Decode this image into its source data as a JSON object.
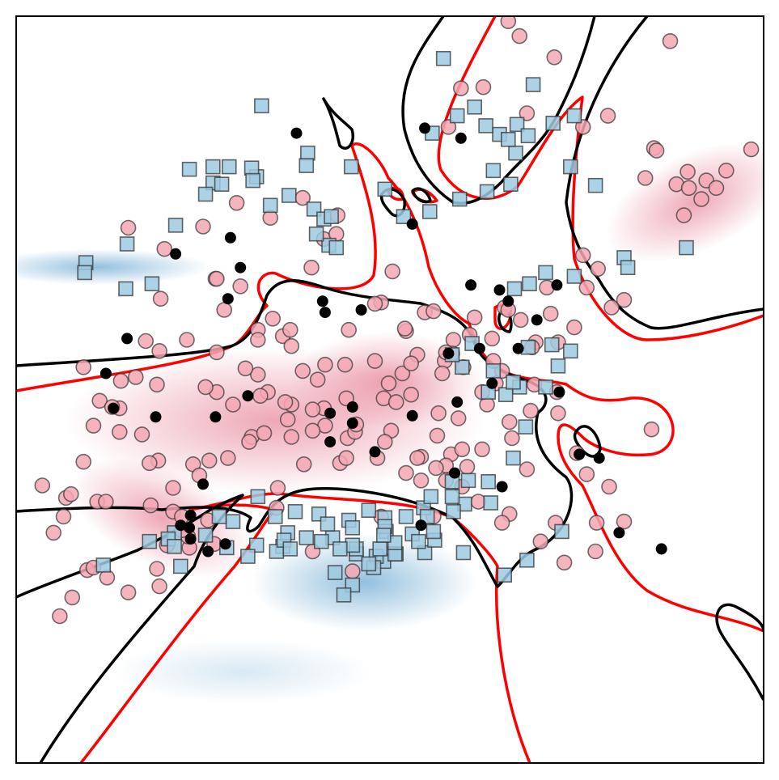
{
  "chart_data": {
    "type": "scatter",
    "title": "",
    "xlabel": "",
    "ylabel": "",
    "xlim": [
      -3,
      3
    ],
    "ylim": [
      -3,
      3
    ],
    "grid": false,
    "axis_ticks": false,
    "colors": {
      "class_red_fill": "#f4a7b4",
      "class_blue_fill": "#9ecae1",
      "marker_edge": "#333333",
      "support_vector": "#000000",
      "boundary_red": "#ff0000",
      "boundary_black": "#000000",
      "density_red": "#e0607a",
      "density_blue": "#3b8cc4"
    },
    "series": [
      {
        "marker": "circle",
        "x": [
          -1.84,
          -1.4,
          -1.33,
          -0.86,
          -0.79,
          -0.52,
          -0.79,
          -0.33,
          -0.07,
          0.02,
          0.28,
          0.35,
          0.68,
          0.51,
          0.1,
          0.22,
          0.82,
          1.17,
          1.35,
          0.9,
          0.55,
          0.01,
          -0.05,
          -0.36,
          -0.58,
          -1.06,
          -0.4,
          0.25,
          0.62,
          0.78,
          0.59,
          0.44,
          0.13,
          -0.12,
          -0.53,
          -0.7,
          -0.98,
          -1.16,
          -1.06,
          -1.39,
          -1.39,
          -1.63,
          -1.85,
          -1.96,
          -2.04,
          -2.17,
          -2.33,
          -2.46,
          -2.16,
          -1.87,
          -1.48,
          -1.04,
          -0.62,
          -0.34,
          -0.1,
          0.25,
          0.49,
          0.74,
          0.98,
          1.13,
          1.34,
          1.5,
          1.76,
          1.66,
          1.33,
          0.96,
          0.71,
          0.45,
          0.22,
          -0.04,
          -0.28,
          -0.52,
          -0.82,
          -1.11,
          -1.3,
          -1.58,
          -1.86,
          -1.99,
          -2.17,
          -2.23,
          -2.38,
          -2.46,
          -2.79,
          -2.6,
          -2.35,
          -1.92,
          -1.74,
          -1.46,
          -1.61,
          -1.79,
          -1.87,
          -2.27,
          -2.43,
          -2.38,
          -2.1,
          -2.55,
          -2.65,
          -2.7,
          -1.67,
          -2.56,
          -1.41,
          -1.53,
          -1.13,
          -0.79,
          -0.35,
          0.05,
          0.42,
          0.83,
          1.05,
          1.26,
          1.58,
          1.78,
          1.29,
          0.92,
          0.64,
          0.5,
          0.17,
          -0.01,
          0.17,
          0.39,
          0.45,
          1.55,
          1.88,
          1.48,
          1.67,
          2.36,
          2.5,
          2.05,
          2.3,
          2.39,
          2.54,
          2.62,
          2.7,
          2.9,
          2.4,
          2.12,
          2.14,
          1.55,
          1.1,
          1.32,
          1.04,
          0.95,
          0.75,
          0.57,
          0.47,
          -0.53,
          -0.63,
          -0.84,
          -1.39,
          -1.93,
          -0.43,
          -0.94,
          -1.06,
          -1.26,
          -0.69,
          -0.9,
          0.37,
          0.58,
          0.96,
          0.85,
          1.16,
          1.35,
          1.1,
          0.9,
          0.58,
          0.35,
          -0.07,
          -0.35,
          -0.62,
          -1.01,
          -1.45,
          -1.74,
          -2.28,
          -2.62,
          -0.62,
          -0.3,
          0.13,
          0.38,
          0.12,
          -0.12,
          -0.42,
          -0.7,
          -0.96,
          -1.23,
          -1.5,
          -1.81,
          1.21,
          1.4,
          1.65,
          1.88,
          2.1,
          1.14,
          0.74,
          0.45,
          -0.27,
          -0.8,
          -1.2,
          0.95,
          1.58,
          2.25,
          1.75,
          -1.62,
          -0.91,
          -1.85,
          -1.67,
          -2.1
        ],
        "y": [
          0.73,
          0.89,
          0.64,
          0.43,
          0.35,
          0.2,
          -0.12,
          0.48,
          0.7,
          0.95,
          0.62,
          0.63,
          0.58,
          0.4,
          0.13,
          0.28,
          0.41,
          0.38,
          0.38,
          0.15,
          -0.23,
          -0.33,
          -0.07,
          0.2,
          0.08,
          0.12,
          -0.59,
          -0.54,
          -0.62,
          -0.12,
          0.18,
          0.23,
          0.47,
          0.23,
          -0.15,
          0.15,
          -0.02,
          0.17,
          0.48,
          0.3,
          -0.02,
          0.4,
          0.31,
          0.39,
          0.1,
          -0.15,
          -0.09,
          0.18,
          0.07,
          0.04,
          0.02,
          -0.05,
          -0.16,
          -0.39,
          -0.55,
          -0.73,
          -0.52,
          -0.48,
          -0.39,
          -0.17,
          -0.02,
          -0.51,
          -0.78,
          -1.07,
          -1.07,
          -1.0,
          -0.9,
          -0.73,
          -0.55,
          -0.42,
          -0.34,
          -0.29,
          -0.24,
          -0.38,
          -0.55,
          -0.6,
          -0.57,
          -0.36,
          -0.34,
          -0.14,
          -0.29,
          -0.58,
          -0.77,
          -0.87,
          -0.9,
          -0.93,
          -0.98,
          -1.05,
          -1.27,
          -1.25,
          -1.44,
          -1.51,
          -1.45,
          -1.43,
          -1.63,
          -1.67,
          -1.82,
          -1.15,
          -1.02,
          -0.84,
          -1.24,
          -0.69,
          -0.42,
          -0.38,
          -0.07,
          -0.1,
          0.13,
          0.23,
          0.56,
          0.82,
          0.82,
          0.66,
          0.61,
          0.66,
          0.44,
          0.29,
          0.21,
          0.05,
          -0.04,
          -0.19,
          -0.61,
          1.08,
          0.72,
          0.5,
          0.97,
          1.4,
          1.53,
          1.7,
          1.65,
          1.75,
          1.68,
          1.62,
          1.76,
          1.93,
          1.62,
          1.94,
          1.92,
          2.11,
          2.22,
          2.67,
          2.84,
          2.96,
          2.43,
          2.42,
          2.11,
          1.21,
          0.98,
          -0.1,
          0.89,
          -0.59,
          1.25,
          0.57,
          0.4,
          -0.12,
          -0.6,
          -0.79,
          -0.63,
          -0.48,
          -0.26,
          0.05,
          0.04,
          -0.19,
          -0.64,
          -1.07,
          -0.78,
          -1.02,
          -1.02,
          -0.55,
          -0.33,
          -0.35,
          -0.57,
          -0.79,
          -0.9,
          -1.02,
          -1.3,
          -1.46,
          -0.67,
          -0.37,
          0.49,
          0.69,
          1.4,
          1.54,
          1.38,
          1.5,
          1.31,
          1.13,
          -1.22,
          -1.39,
          -1.3,
          -1.06,
          -0.32,
          0.34,
          -0.02,
          0.3,
          -0.28,
          0.48,
          0.83,
          0.64,
          -0.68,
          2.8,
          2.2,
          -1.18,
          -0.95,
          -1.58,
          -1.13,
          1.3
        ]
      },
      {
        "marker": "square",
        "x": [
          -1.73,
          -1.78,
          -1.73,
          -1.68,
          -2.3,
          -1.93,
          -1.48,
          -1.06,
          -1.26,
          -1.37,
          -1.31,
          -1.07,
          -1.14,
          -0.86,
          -0.27,
          -0.05,
          0.05,
          0.28,
          0.36,
          0.59,
          0.35,
          0.13,
          -0.03,
          -0.04,
          0.6,
          0.81,
          0.79,
          0.5,
          0.5,
          0.27,
          0.33,
          0.63,
          0.99,
          1.09,
          1.04,
          0.93,
          0.79,
          0.58,
          0.5,
          0.66,
          1.11,
          1.3,
          1.45,
          1.35,
          1.25,
          0.99,
          0.83,
          -0.17,
          0.51,
          -0.33,
          -0.04,
          0.3,
          0.04,
          -0.11,
          -0.27,
          -0.46,
          -0.57,
          -0.76,
          -0.91,
          -0.92,
          -0.82,
          -0.55,
          -0.3,
          -0.08,
          -0.13,
          0.04,
          0.18,
          0.23,
          -0.05,
          -0.3,
          -0.5,
          -0.85,
          -0.8,
          1.38,
          1.1,
          0.92,
          -0.44,
          -0.17,
          -0.4,
          -0.67,
          -0.3,
          -0.37,
          -1.91,
          -2.11,
          -2.44,
          -1.72,
          -2.45,
          -2.12,
          -0.31,
          -1.03,
          -0.66,
          -0.81,
          -0.61,
          -0.53,
          -0.49,
          -0.43,
          -0.59,
          -0.47,
          -0.67,
          -0.96,
          -1.07,
          -1.11,
          -1.29,
          -1.42,
          -1.61,
          -1.48,
          -1.35,
          -1.42,
          -1.1,
          0.43,
          0.68,
          0.88,
          1.02,
          1.31,
          1.01,
          0.83,
          0.97,
          0.78,
          0.56,
          0.32,
          0.11,
          -0.04,
          0.34,
          0.54,
          0.77,
          0.95,
          1.11,
          1.15,
          1.48,
          1.45,
          1.65,
          2.38,
          1.88,
          1.91,
          1.48,
          1.25,
          1.12,
          1.0
        ],
        "y": [
          -1.15,
          -1.2,
          -1.26,
          -1.42,
          -1.41,
          -1.22,
          -1.17,
          -0.86,
          -1.06,
          -1.02,
          -1.27,
          -1.25,
          -1.34,
          -1.26,
          -1.32,
          -1.38,
          -1.32,
          -1.31,
          -1.21,
          -1.31,
          -1.14,
          -1.02,
          -1.14,
          -1.03,
          -0.92,
          -0.91,
          -0.74,
          -0.74,
          -0.86,
          -0.95,
          -0.86,
          -0.73,
          -0.55,
          -0.3,
          0.02,
          -0.04,
          -0.02,
          0.18,
          0.28,
          0.37,
          0.34,
          0.36,
          0.31,
          0.19,
          0.02,
          0.06,
          0.15,
          -0.97,
          -0.98,
          -1.05,
          -1.1,
          -1.02,
          -1.32,
          -1.34,
          -1.28,
          -1.19,
          -1.0,
          -0.98,
          -1.3,
          -1.02,
          -1.15,
          -1.22,
          -1.25,
          -1.28,
          -1.43,
          -1.23,
          -1.16,
          -1.22,
          -1.17,
          -1.11,
          -1.08,
          -1.21,
          -1.28,
          -1.14,
          -1.37,
          -1.49,
          -1.47,
          -1.4,
          -1.28,
          -1.19,
          -1.57,
          -1.65,
          0.85,
          1.17,
          1.02,
          1.32,
          0.94,
          0.81,
          1.79,
          2.28,
          1.9,
          1.56,
          1.45,
          1.37,
          1.16,
          1.14,
          1.25,
          1.39,
          1.8,
          1.48,
          1.71,
          1.78,
          1.79,
          1.66,
          1.77,
          1.57,
          1.65,
          1.79,
          1.68,
          2.66,
          2.27,
          2.05,
          2.13,
          2.14,
          1.9,
          1.76,
          1.65,
          1.59,
          1.53,
          1.43,
          1.39,
          1.61,
          2.06,
          2.2,
          2.12,
          2.01,
          2.04,
          2.45,
          2.2,
          1.79,
          1.64,
          1.14,
          1.06,
          0.98,
          0.91,
          0.94,
          0.85,
          0.81
        ]
      }
    ],
    "support_vectors": {
      "x": [
        -1.3,
        -0.54,
        -0.52,
        -0.23,
        -0.48,
        -0.12,
        0.52,
        0.9,
        1.52,
        1.68,
        1.84,
        2.18,
        0.28,
        0.57,
        -0.75,
        0.18,
        -1.72,
        -1.28,
        -1.2,
        0.65,
        1.34,
        1.03,
        0.72,
        0.47,
        -1.4,
        -0.3,
        -0.3,
        -0.48,
        0.82,
        1.36,
        0.88,
        0.95,
        1.18,
        -2.11,
        -2.28,
        -2.22,
        -1.88,
        -1.5,
        -1.61,
        -1.6,
        -1.14,
        0.25,
        0.54,
        0.18,
        -1.32,
        -1.6,
        -1.68,
        -1.46
      ],
      "y": [
        0.73,
        0.71,
        0.62,
        0.64,
        -0.42,
        -0.5,
        -0.67,
        -0.78,
        -0.52,
        -0.55,
        -1.15,
        -1.28,
        2.1,
        2.02,
        2.06,
        1.33,
        1.09,
        1.22,
        0.98,
        0.84,
        0.84,
        0.33,
        0.33,
        0.29,
        -0.22,
        -0.27,
        -0.14,
        -0.19,
        0.05,
        -0.02,
        0.8,
        0.71,
        0.56,
        0.41,
        0.13,
        -0.15,
        -0.22,
        -0.76,
        -1.11,
        -1.01,
        -0.05,
        -1.09,
        -0.1,
        -0.21,
        -1.24,
        -1.2,
        -1.09,
        -1.3
      ]
    }
  }
}
